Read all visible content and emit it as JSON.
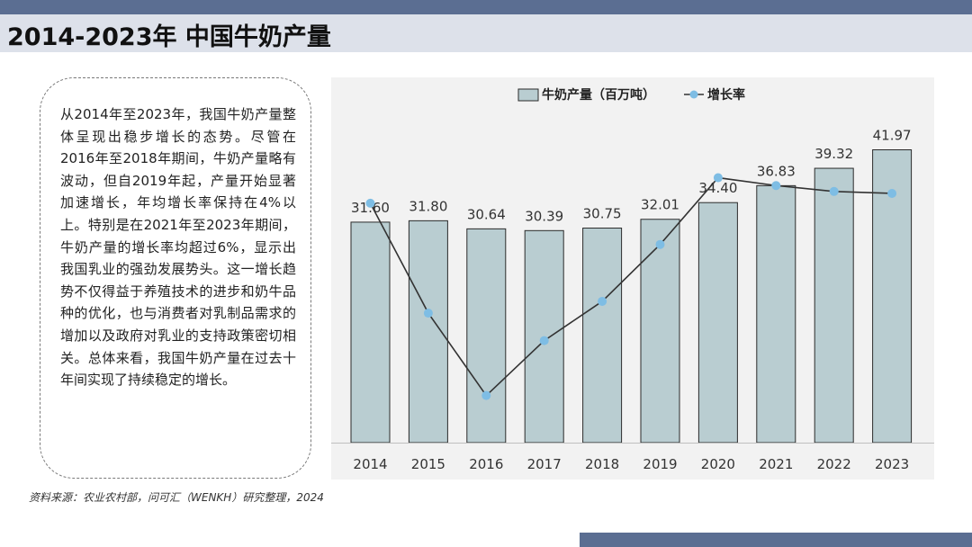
{
  "header": {
    "title": "2014-2023年 中国牛奶产量"
  },
  "description": {
    "text": "从2014年至2023年，我国牛奶产量整体呈现出稳步增长的态势。尽管在2016年至2018年期间，牛奶产量略有波动，但自2019年起，产量开始显著加速增长，年均增长率保持在4%以上。特别是在2021年至2023年期间，牛奶产量的增长率均超过6%，显示出我国乳业的强劲发展势头。这一增长趋势不仅得益于养殖技术的进步和奶牛品种的优化，也与消费者对乳制品需求的增加以及政府对乳业的支持政策密切相关。总体来看，我国牛奶产量在过去十年间实现了持续稳定的增长。"
  },
  "footer": {
    "source": "资料来源：农业农村部，问可汇（WENKH）研究整理，2024"
  },
  "colors": {
    "bar_fill": "#b9cdd1",
    "bar_stroke": "#2b2b2b",
    "line": "#333333",
    "marker": "#7ebde4",
    "accent_bar": "#5b6e92"
  },
  "chart_data": {
    "type": "bar",
    "title": "",
    "xlabel": "",
    "ylabel": "",
    "categories": [
      "2014",
      "2015",
      "2016",
      "2017",
      "2018",
      "2019",
      "2020",
      "2021",
      "2022",
      "2023"
    ],
    "series": [
      {
        "name": "牛奶产量（百万吨）",
        "type": "bar",
        "values": [
          31.6,
          31.8,
          30.64,
          30.39,
          30.75,
          32.01,
          34.4,
          36.83,
          39.32,
          41.97
        ],
        "data_labels": [
          "31.60",
          "31.80",
          "30.64",
          "30.39",
          "30.75",
          "32.01",
          "34.40",
          "36.83",
          "39.32",
          "41.97"
        ]
      },
      {
        "name": "增长率",
        "type": "line",
        "values": [
          6.2,
          0.6,
          -3.6,
          -0.8,
          1.2,
          4.1,
          7.5,
          7.1,
          6.8,
          6.7
        ]
      }
    ],
    "ylim": [
      0,
      45
    ],
    "y2lim": [
      -6,
      10
    ],
    "legend": "top-center",
    "grid": false
  }
}
